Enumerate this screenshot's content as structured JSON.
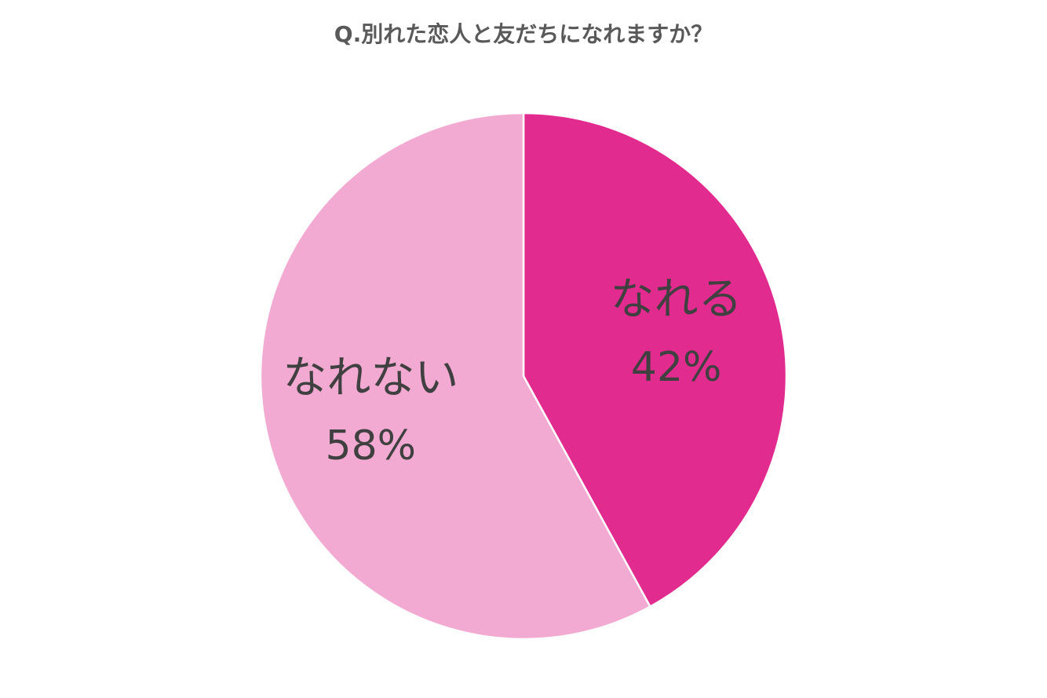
{
  "chart_data": {
    "type": "pie",
    "title": "Q.別れた恋人と友だちになれますか？",
    "categories": [
      "なれる",
      "なれない"
    ],
    "values": [
      42,
      58
    ],
    "value_labels": [
      "42%",
      "58%"
    ],
    "colors": [
      "#e22b8f",
      "#f2aad2"
    ]
  }
}
